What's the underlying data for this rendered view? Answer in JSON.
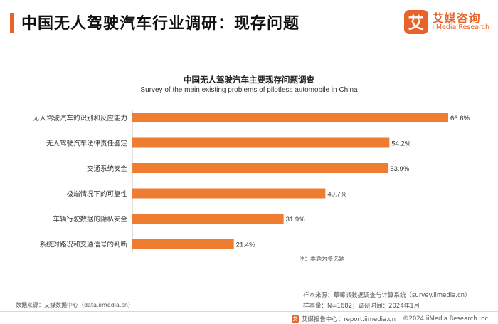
{
  "header": {
    "title": "中国无人驾驶汽车行业调研：现存问题",
    "brand_mark": "艾",
    "brand_cn": "艾媒咨询",
    "brand_en": "iiMedia Research"
  },
  "colors": {
    "accent": "#e8632a",
    "bar": "#ee7d31"
  },
  "chart_data": {
    "type": "bar",
    "orientation": "horizontal",
    "title": "中国无人驾驶汽车主要现存问题调查",
    "subtitle": "Survey of the main existing problems of pilotless automobile in China",
    "categories": [
      "无人驾驶汽车的识别和反应能力",
      "无人驾驶汽车法律责任鉴定",
      "交通系统安全",
      "极端情况下的可靠性",
      "车辆行驶数据的隐私安全",
      "系统对路况和交通信号的判断"
    ],
    "values": [
      66.6,
      54.2,
      53.9,
      40.7,
      31.9,
      21.4
    ],
    "value_labels": [
      "66.6%",
      "54.2%",
      "53.9%",
      "40.7%",
      "31.9%",
      "21.4%"
    ],
    "unit": "%",
    "xlim": [
      0,
      66.6
    ],
    "grid": false,
    "legend": "none"
  },
  "notes": {
    "note": "注：本题为多选题",
    "sample_source": "样本来源：草莓派数据调查与计算系统（survey.iimedia.cn）",
    "sample_size": "样本量：N=1682；调研时间：2024年1月",
    "data_source": "数据来源：艾媒数据中心（data.iimedia.cn）"
  },
  "footer": {
    "icon": "艾",
    "report_center": "艾媒报告中心：report.iimedia.cn",
    "copyright": "©2024  iiMedia Research  Inc"
  }
}
